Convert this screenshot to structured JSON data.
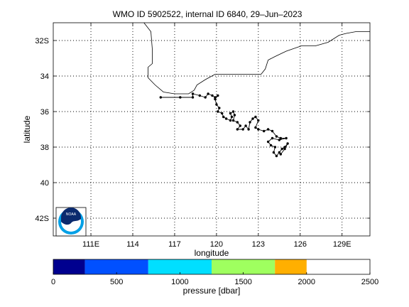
{
  "chart_data": {
    "type": "scatter",
    "title": "WMO ID 5902522, internal ID 6840, 29–Jun–2023",
    "xlabel": "longitude",
    "ylabel": "latitude",
    "xlim": [
      108.3,
      131.0
    ],
    "ylim": [
      -43.0,
      -31.0
    ],
    "grid": true,
    "x_ticks": [
      {
        "value": 111,
        "label": "111E"
      },
      {
        "value": 114,
        "label": "114"
      },
      {
        "value": 117,
        "label": "117"
      },
      {
        "value": 120,
        "label": "120"
      },
      {
        "value": 123,
        "label": "123"
      },
      {
        "value": 126,
        "label": "126"
      },
      {
        "value": 129,
        "label": "129E"
      }
    ],
    "y_ticks": [
      {
        "value": -32,
        "label": "32S"
      },
      {
        "value": -34,
        "label": "34"
      },
      {
        "value": -36,
        "label": "36"
      },
      {
        "value": -38,
        "label": "38"
      },
      {
        "value": -40,
        "label": "40"
      },
      {
        "value": -42,
        "label": "42S"
      }
    ],
    "coastline": [
      [
        114.8,
        -31.0
      ],
      [
        115.3,
        -31.5
      ],
      [
        115.4,
        -32.5
      ],
      [
        115.4,
        -33.3
      ],
      [
        115.1,
        -33.5
      ],
      [
        115.1,
        -34.1
      ],
      [
        115.6,
        -34.5
      ],
      [
        116.2,
        -34.9
      ],
      [
        117.0,
        -35.0
      ],
      [
        118.0,
        -35.0
      ],
      [
        118.4,
        -34.8
      ],
      [
        118.6,
        -34.5
      ],
      [
        119.2,
        -34.2
      ],
      [
        119.9,
        -33.9
      ],
      [
        120.6,
        -33.9
      ],
      [
        121.5,
        -33.9
      ],
      [
        122.2,
        -33.9
      ],
      [
        123.2,
        -33.9
      ],
      [
        123.5,
        -33.6
      ],
      [
        123.7,
        -33.1
      ],
      [
        124.2,
        -32.9
      ],
      [
        125.0,
        -32.6
      ],
      [
        126.1,
        -32.3
      ],
      [
        127.1,
        -32.3
      ],
      [
        128.0,
        -32.1
      ],
      [
        128.8,
        -31.7
      ],
      [
        129.3,
        -31.6
      ],
      [
        130.0,
        -31.5
      ],
      [
        131.0,
        -31.5
      ]
    ],
    "track": [
      [
        116.0,
        -35.2
      ],
      [
        117.4,
        -35.2
      ],
      [
        118.3,
        -35.2
      ],
      [
        118.3,
        -35.0
      ],
      [
        118.8,
        -35.1
      ],
      [
        119.2,
        -35.2
      ],
      [
        119.4,
        -35.0
      ],
      [
        119.7,
        -35.1
      ],
      [
        119.9,
        -35.2
      ],
      [
        120.1,
        -35.1
      ],
      [
        119.9,
        -35.3
      ],
      [
        120.0,
        -35.6
      ],
      [
        120.2,
        -35.8
      ],
      [
        120.1,
        -36.0
      ],
      [
        120.4,
        -36.1
      ],
      [
        120.5,
        -36.3
      ],
      [
        120.7,
        -36.4
      ],
      [
        121.0,
        -36.5
      ],
      [
        121.1,
        -36.3
      ],
      [
        121.0,
        -36.1
      ],
      [
        121.2,
        -36.0
      ],
      [
        121.3,
        -36.2
      ],
      [
        121.2,
        -36.5
      ],
      [
        121.5,
        -36.6
      ],
      [
        121.7,
        -36.8
      ],
      [
        121.5,
        -37.0
      ],
      [
        121.9,
        -37.0
      ],
      [
        122.1,
        -36.8
      ],
      [
        122.3,
        -37.0
      ],
      [
        122.4,
        -36.6
      ],
      [
        122.6,
        -36.4
      ],
      [
        122.8,
        -36.3
      ],
      [
        123.0,
        -36.5
      ],
      [
        122.8,
        -36.9
      ],
      [
        123.0,
        -37.0
      ],
      [
        123.4,
        -37.1
      ],
      [
        123.7,
        -37.0
      ],
      [
        124.0,
        -37.1
      ],
      [
        124.3,
        -37.4
      ],
      [
        124.6,
        -37.5
      ],
      [
        125.0,
        -37.5
      ],
      [
        124.5,
        -37.6
      ],
      [
        124.0,
        -37.5
      ],
      [
        123.7,
        -37.7
      ],
      [
        123.9,
        -37.9
      ],
      [
        124.2,
        -38.0
      ],
      [
        124.1,
        -38.3
      ],
      [
        124.3,
        -38.5
      ],
      [
        124.5,
        -38.3
      ],
      [
        124.7,
        -38.1
      ],
      [
        124.9,
        -38.0
      ],
      [
        125.1,
        -37.8
      ],
      [
        124.9,
        -38.1
      ],
      [
        124.6,
        -38.4
      ]
    ],
    "colorbar": {
      "label": "pressure [dbar]",
      "range": [
        0,
        2500
      ],
      "tick_values": [
        0,
        500,
        1000,
        1500,
        2000,
        2500
      ],
      "tick_labels": [
        "0",
        "500",
        "1000",
        "1500",
        "2000",
        "2500"
      ],
      "bins": [
        {
          "from": 0,
          "to": 250,
          "color": "#00008f"
        },
        {
          "from": 250,
          "to": 750,
          "color": "#0050ff"
        },
        {
          "from": 750,
          "to": 1250,
          "color": "#00dfff"
        },
        {
          "from": 1250,
          "to": 1750,
          "color": "#9fff5f"
        },
        {
          "from": 1750,
          "to": 2000,
          "color": "#ffaf00"
        }
      ]
    },
    "logo": {
      "text": "NOAA",
      "colors": {
        "ring": "#00a0e6",
        "dark": "#0b2a6e",
        "bg": "#ffffff"
      }
    }
  }
}
